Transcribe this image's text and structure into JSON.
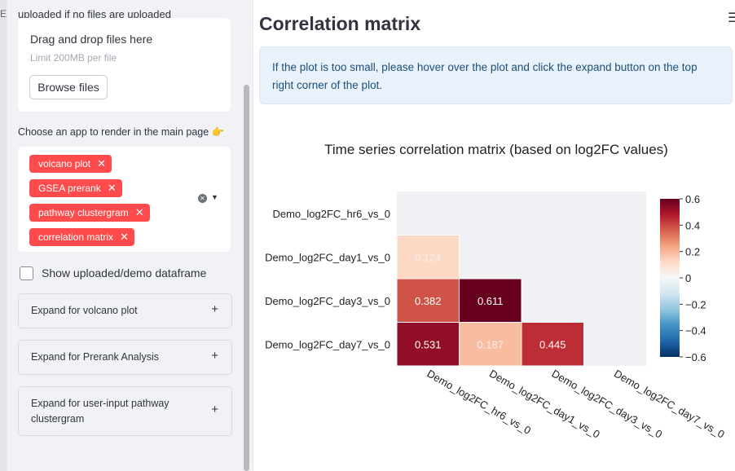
{
  "sidebar": {
    "edge_char": "E",
    "upload_hint": "uploaded if no files are uploaded",
    "dropzone": {
      "title": "Drag and drop files here",
      "limit": "Limit 200MB per file",
      "browse_label": "Browse files"
    },
    "choose_label": "Choose an app to render in the main page 👉",
    "selected_apps": [
      "volcano plot",
      "GSEA prerank",
      "pathway clustergram",
      "correlation matrix"
    ],
    "tag_close": "✕",
    "show_df_label": "Show uploaded/demo dataframe",
    "show_df_checked": false,
    "expanders": [
      {
        "label": "Expand for volcano plot"
      },
      {
        "label": "Expand for Prerank Analysis"
      },
      {
        "label": "Expand for user-input pathway clustergram"
      }
    ],
    "expander_icon": "+"
  },
  "main": {
    "title": "Correlation matrix",
    "menu_icon": "☰",
    "info_text": "If the plot is too small, please hover over the plot and click the expand button on the top right corner of the plot."
  },
  "colors": {
    "accent": "#ff4b4b",
    "sidebar_bg": "#f0f2f6",
    "info_bg": "#e9f2fb",
    "info_text": "#1c4f78"
  },
  "chart_data": {
    "type": "heatmap",
    "title": "Time series correlation matrix (based on log2FC values)",
    "row_labels": [
      "Demo_log2FC_hr6_vs_0",
      "Demo_log2FC_day1_vs_0",
      "Demo_log2FC_day3_vs_0",
      "Demo_log2FC_day7_vs_0"
    ],
    "col_labels": [
      "Demo_log2FC_hr6_vs_0",
      "Demo_log2FC_day1_vs_0",
      "Demo_log2FC_day3_vs_0",
      "Demo_log2FC_day7_vs_0"
    ],
    "values": [
      [
        null,
        null,
        null,
        null
      ],
      [
        0.124,
        null,
        null,
        null
      ],
      [
        0.382,
        0.611,
        null,
        null
      ],
      [
        0.531,
        0.187,
        0.445,
        null
      ]
    ],
    "cell_labels": [
      [
        null,
        null,
        null,
        null
      ],
      [
        "0.124",
        null,
        null,
        null
      ],
      [
        "0.382",
        "0.611",
        null,
        null
      ],
      [
        "0.531",
        "0.187",
        "0.445",
        null
      ]
    ],
    "colorscale": "RdBu_r",
    "zrange": [
      -0.6,
      0.6
    ],
    "colorbar_ticks": [
      "0.6",
      "0.4",
      "0.2",
      "0",
      "−0.2",
      "−0.4",
      "−0.6"
    ],
    "masked_color": "#eff1f5"
  }
}
